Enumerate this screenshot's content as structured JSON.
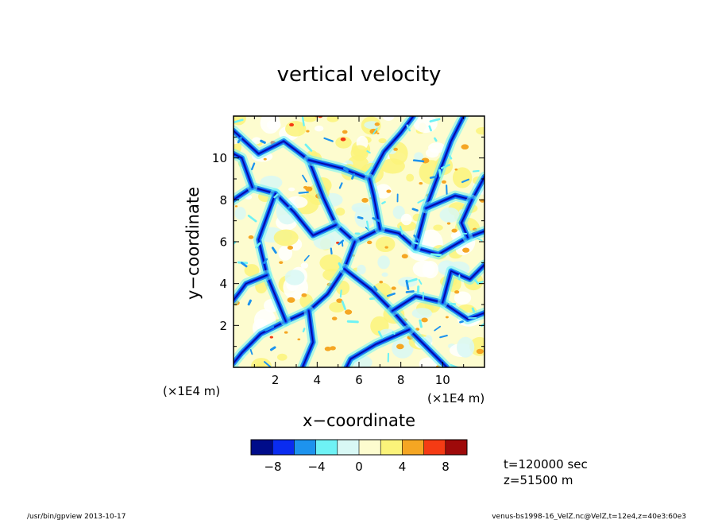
{
  "chart_data": {
    "type": "heatmap",
    "title": "vertical velocity",
    "xlabel": "x−coordinate",
    "ylabel": "y−coordinate",
    "x_unit": "(×1E4 m)",
    "y_unit": "(×1E4 m)",
    "xlim": [
      0,
      12
    ],
    "ylim": [
      0,
      12
    ],
    "x_ticks": [
      "2",
      "4",
      "6",
      "8",
      "10"
    ],
    "y_ticks": [
      "2",
      "4",
      "6",
      "8",
      "10"
    ],
    "colorbar": {
      "levels": [
        -10,
        -8,
        -6,
        -4,
        -2,
        0,
        2,
        4,
        6,
        8,
        10
      ],
      "tick_labels": [
        "−8",
        "−4",
        "0",
        "4",
        "8"
      ],
      "colors": [
        "#000c8a",
        "#0a2cf0",
        "#1d93ee",
        "#6ef2f5",
        "#d8f8f5",
        "#fdfccf",
        "#fbf37a",
        "#f5a623",
        "#f53b14",
        "#9e0a0a"
      ]
    },
    "field_description": "cellular convection pattern: broad weak positive (updraft) cells separated by narrow negative (downdraft) lanes"
  },
  "annotations": {
    "time": "t=120000 sec",
    "height": "z=51500 m",
    "footer_left": "/usr/bin/gpview   2013-10-17",
    "footer_right": "venus-bs1998-16_VelZ.nc@VelZ,t=12e4,z=40e3:60e3"
  }
}
